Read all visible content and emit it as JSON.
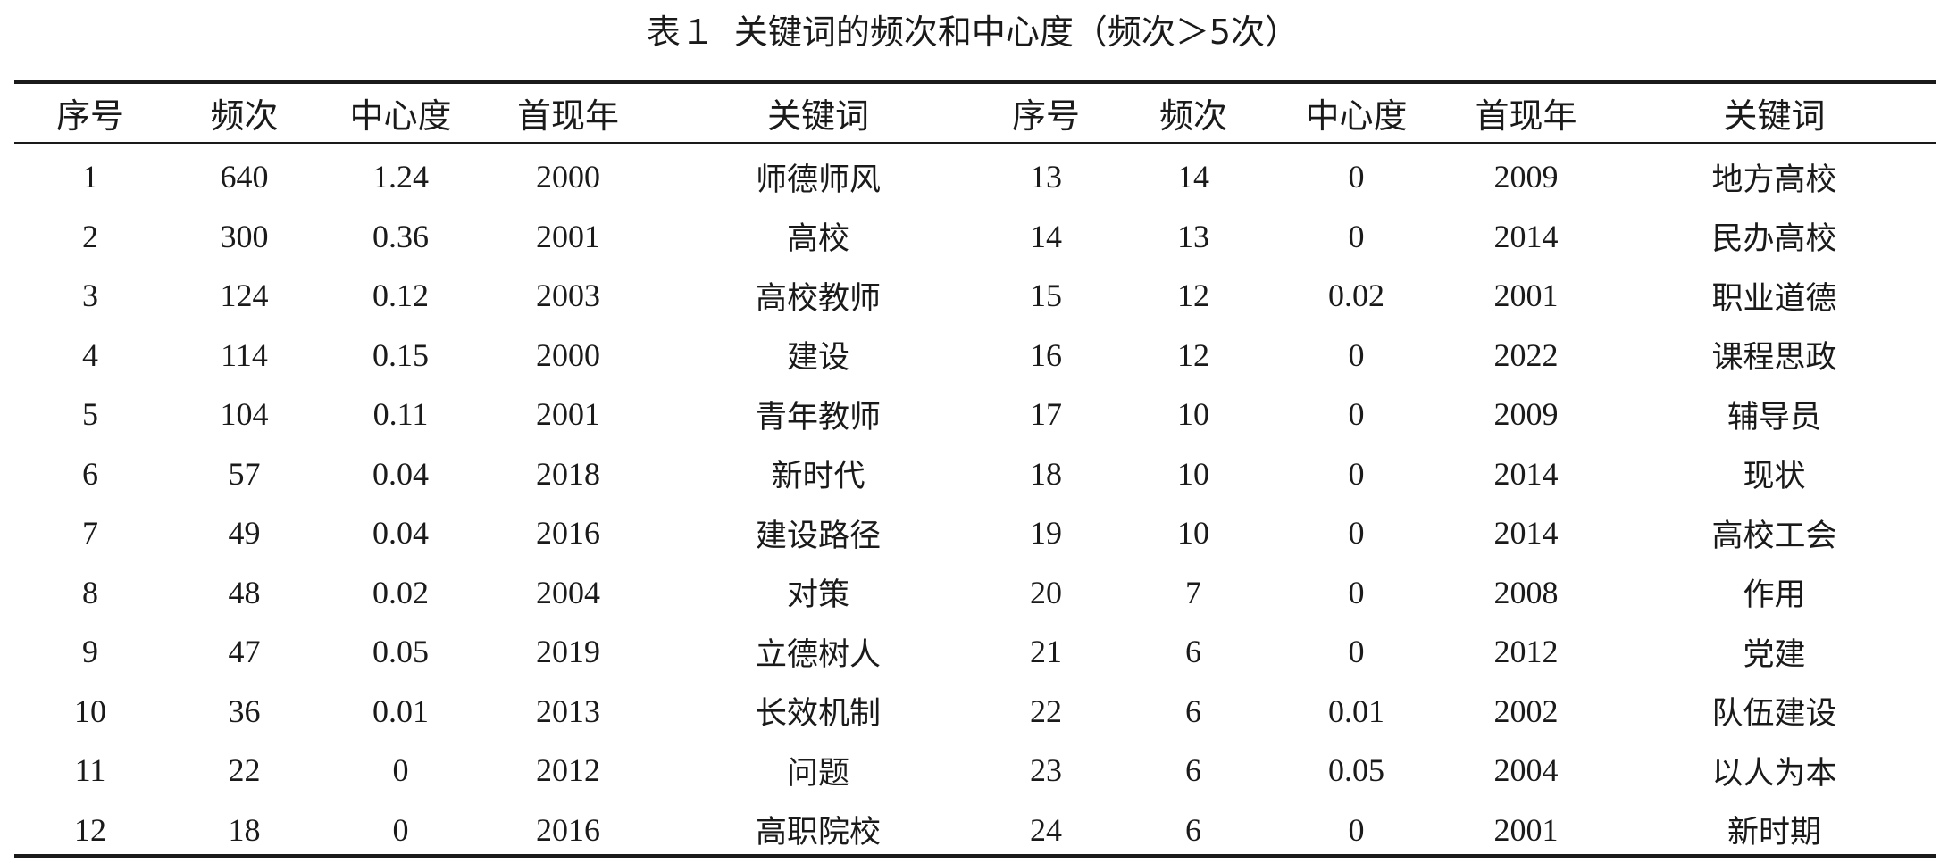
{
  "caption": {
    "number": "表１",
    "title": "关键词的频次和中心度（频次＞5次）"
  },
  "table": {
    "headers": [
      "序号",
      "频次",
      "中心度",
      "首现年",
      "关键词",
      "序号",
      "频次",
      "中心度",
      "首现年",
      "关键词"
    ],
    "rows": [
      [
        "1",
        "640",
        "1.24",
        "2000",
        "师德师风",
        "13",
        "14",
        "0",
        "2009",
        "地方高校"
      ],
      [
        "2",
        "300",
        "0.36",
        "2001",
        "高校",
        "14",
        "13",
        "0",
        "2014",
        "民办高校"
      ],
      [
        "3",
        "124",
        "0.12",
        "2003",
        "高校教师",
        "15",
        "12",
        "0.02",
        "2001",
        "职业道德"
      ],
      [
        "4",
        "114",
        "0.15",
        "2000",
        "建设",
        "16",
        "12",
        "0",
        "2022",
        "课程思政"
      ],
      [
        "5",
        "104",
        "0.11",
        "2001",
        "青年教师",
        "17",
        "10",
        "0",
        "2009",
        "辅导员"
      ],
      [
        "6",
        "57",
        "0.04",
        "2018",
        "新时代",
        "18",
        "10",
        "0",
        "2014",
        "现状"
      ],
      [
        "7",
        "49",
        "0.04",
        "2016",
        "建设路径",
        "19",
        "10",
        "0",
        "2014",
        "高校工会"
      ],
      [
        "8",
        "48",
        "0.02",
        "2004",
        "对策",
        "20",
        "7",
        "0",
        "2008",
        "作用"
      ],
      [
        "9",
        "47",
        "0.05",
        "2019",
        "立德树人",
        "21",
        "6",
        "0",
        "2012",
        "党建"
      ],
      [
        "10",
        "36",
        "0.01",
        "2013",
        "长效机制",
        "22",
        "6",
        "0.01",
        "2002",
        "队伍建设"
      ],
      [
        "11",
        "22",
        "0",
        "2012",
        "问题",
        "23",
        "6",
        "0.05",
        "2004",
        "以人为本"
      ],
      [
        "12",
        "18",
        "0",
        "2016",
        "高职院校",
        "24",
        "6",
        "0",
        "2001",
        "新时期"
      ]
    ]
  }
}
